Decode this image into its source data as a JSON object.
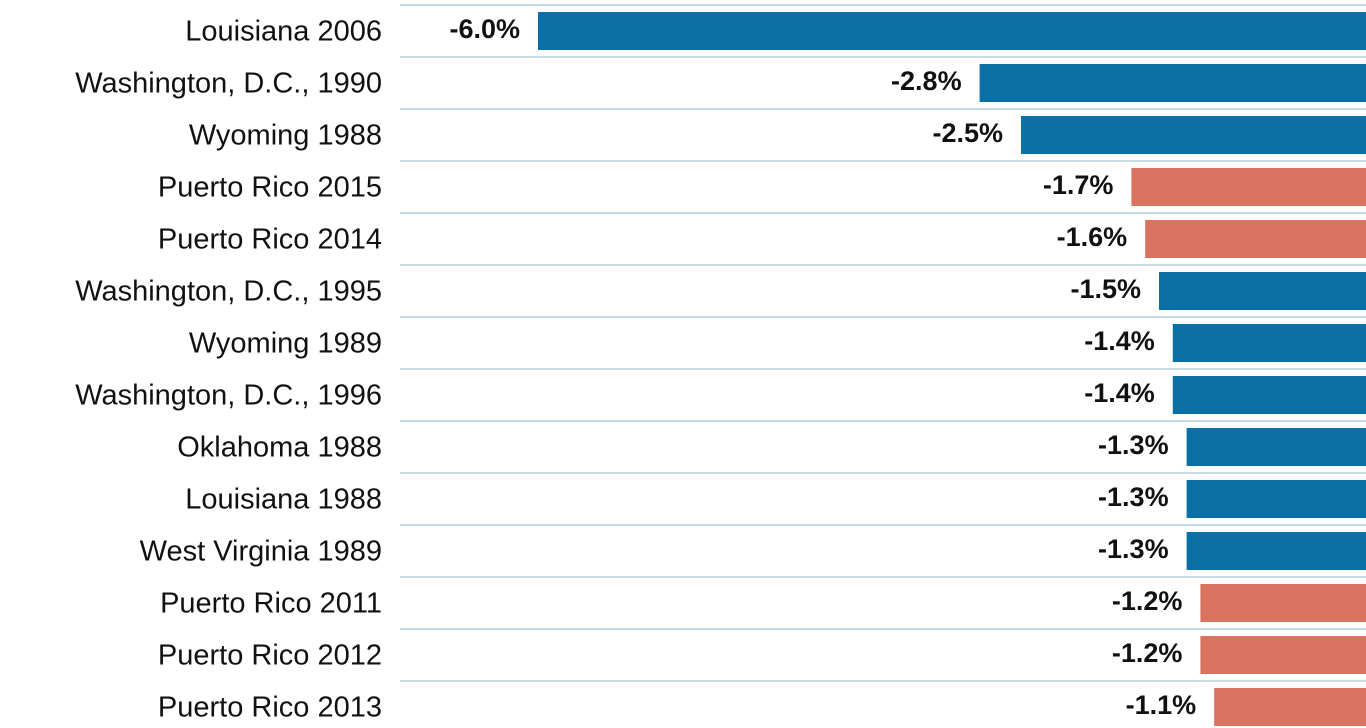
{
  "chart_data": {
    "type": "barh",
    "categories": [
      "Louisiana 2006",
      "Washington, D.C., 1990",
      "Wyoming 1988",
      "Puerto Rico 2015",
      "Puerto Rico 2014",
      "Washington, D.C., 1995",
      "Wyoming 1989",
      "Washington, D.C., 1996",
      "Oklahoma 1988",
      "Louisiana 1988",
      "West Virginia 1989",
      "Puerto Rico 2011",
      "Puerto Rico 2012",
      "Puerto Rico 2013"
    ],
    "values": [
      -6.0,
      -2.8,
      -2.5,
      -1.7,
      -1.6,
      -1.5,
      -1.4,
      -1.4,
      -1.3,
      -1.3,
      -1.3,
      -1.2,
      -1.2,
      -1.1
    ],
    "value_labels": [
      "-6.0%",
      "-2.8%",
      "-2.5%",
      "-1.7%",
      "-1.6%",
      "-1.5%",
      "-1.4%",
      "-1.4%",
      "-1.3%",
      "-1.3%",
      "-1.3%",
      "-1.2%",
      "-1.2%",
      "-1.1%"
    ],
    "colors": [
      "#0a6fa5",
      "#0a6fa5",
      "#0a6fa5",
      "#d9725f",
      "#d9725f",
      "#0a6fa5",
      "#0a6fa5",
      "#0a6fa5",
      "#0a6fa5",
      "#0a6fa5",
      "#0a6fa5",
      "#d9725f",
      "#d9725f",
      "#d9725f"
    ],
    "xlim": [
      -7,
      0
    ]
  }
}
